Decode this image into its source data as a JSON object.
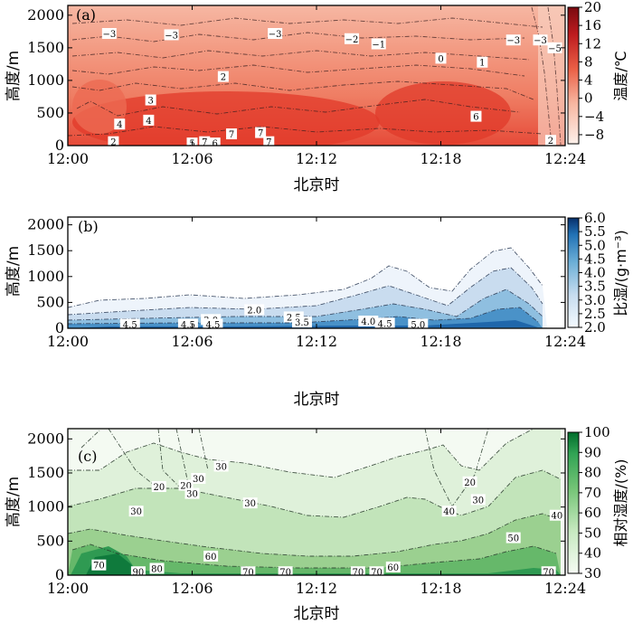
{
  "chart_data": [
    {
      "panel_label": "(a)",
      "type": "heatmap",
      "xlabel": "北京时",
      "ylabel": "高度/m",
      "x_ticks": [
        "12:00",
        "12:06",
        "12:12",
        "12:18",
        "12:24"
      ],
      "y_ticks": [
        0,
        500,
        1000,
        1500,
        2000
      ],
      "ylim": [
        0,
        2150
      ],
      "colorbar": {
        "title": "温度/℃",
        "ticks": [
          20,
          16,
          12,
          8,
          4,
          0,
          -4,
          -8
        ],
        "range": [
          -10,
          20
        ],
        "colors": [
          "#fdf0ea",
          "#f7b59f",
          "#ea5f45",
          "#bd1b1f",
          "#7a0a10"
        ]
      },
      "contour_labels": [
        {
          "text": "−3",
          "time_min": 2.0,
          "height_m": 1720
        },
        {
          "text": "−3",
          "time_min": 5.0,
          "height_m": 1700
        },
        {
          "text": "−3",
          "time_min": 10.0,
          "height_m": 1720
        },
        {
          "text": "−2",
          "time_min": 13.7,
          "height_m": 1640
        },
        {
          "text": "−1",
          "time_min": 15.0,
          "height_m": 1560
        },
        {
          "text": "−3",
          "time_min": 21.5,
          "height_m": 1620
        },
        {
          "text": "−3",
          "time_min": 22.8,
          "height_m": 1620
        },
        {
          "text": "−5",
          "time_min": 23.5,
          "height_m": 1500
        },
        {
          "text": "0",
          "time_min": 18.0,
          "height_m": 1340
        },
        {
          "text": "1",
          "time_min": 20.0,
          "height_m": 1280
        },
        {
          "text": "2",
          "time_min": 7.5,
          "height_m": 1060
        },
        {
          "text": "3",
          "time_min": 4.0,
          "height_m": 700
        },
        {
          "text": "4",
          "time_min": 2.5,
          "height_m": 330
        },
        {
          "text": "4",
          "time_min": 3.9,
          "height_m": 390
        },
        {
          "text": "2",
          "time_min": 2.2,
          "height_m": 60
        },
        {
          "text": "5",
          "time_min": 6.0,
          "height_m": 40
        },
        {
          "text": "7",
          "time_min": 6.6,
          "height_m": 60
        },
        {
          "text": "6",
          "time_min": 7.1,
          "height_m": 40
        },
        {
          "text": "7",
          "time_min": 7.9,
          "height_m": 180
        },
        {
          "text": "7",
          "time_min": 9.3,
          "height_m": 200
        },
        {
          "text": "7",
          "time_min": 9.7,
          "height_m": 60
        },
        {
          "text": "6",
          "time_min": 19.7,
          "height_m": 450
        },
        {
          "text": "2",
          "time_min": 23.3,
          "height_m": 80
        }
      ]
    },
    {
      "panel_label": "(b)",
      "type": "heatmap",
      "xlabel": "北京时",
      "ylabel": "高度/m",
      "x_ticks": [
        "12:00",
        "12:06",
        "12:12",
        "12:18",
        "12:24"
      ],
      "y_ticks": [
        0,
        500,
        1000,
        1500,
        2000
      ],
      "ylim": [
        0,
        2150
      ],
      "colorbar": {
        "title": "比湿/(g·m⁻³)",
        "ticks": [
          "6.0",
          "5.5",
          "5.0",
          "4.5",
          "4.0",
          "3.5",
          "3.0",
          "2.5",
          "2.0"
        ],
        "range": [
          2.0,
          6.0
        ],
        "colors": [
          "#f4f9fe",
          "#c6dcef",
          "#6baed6",
          "#2171b5",
          "#08306b"
        ]
      },
      "contour_labels": [
        {
          "text": "4.5",
          "time_min": 3.0,
          "height_m": 80
        },
        {
          "text": "4.5",
          "time_min": 5.8,
          "height_m": 80
        },
        {
          "text": "3.0",
          "time_min": 6.9,
          "height_m": 170
        },
        {
          "text": "4.5",
          "time_min": 7.0,
          "height_m": 80
        },
        {
          "text": "2.0",
          "time_min": 9.0,
          "height_m": 360
        },
        {
          "text": "2.5",
          "time_min": 10.9,
          "height_m": 220
        },
        {
          "text": "3.5",
          "time_min": 11.3,
          "height_m": 120
        },
        {
          "text": "4.0",
          "time_min": 14.5,
          "height_m": 140
        },
        {
          "text": "4.5",
          "time_min": 15.3,
          "height_m": 100
        },
        {
          "text": "5.0",
          "time_min": 16.9,
          "height_m": 80
        }
      ]
    },
    {
      "panel_label": "(c)",
      "type": "heatmap",
      "xlabel": "北京时",
      "ylabel": "高度/m",
      "x_ticks": [
        "12:00",
        "12:06",
        "12:12",
        "12:18",
        "12:24"
      ],
      "y_ticks": [
        0,
        500,
        1000,
        1500,
        2000
      ],
      "ylim": [
        0,
        2150
      ],
      "colorbar": {
        "title": "相对湿度/(%)",
        "ticks": [
          100,
          90,
          80,
          70,
          60,
          50,
          40,
          30
        ],
        "range": [
          30,
          100
        ],
        "colors": [
          "#f5fbf3",
          "#c7e9c0",
          "#74c476",
          "#31a354",
          "#006d2c"
        ]
      },
      "contour_labels": [
        {
          "text": "20",
          "time_min": 4.4,
          "height_m": 1300
        },
        {
          "text": "20",
          "time_min": 5.7,
          "height_m": 1320
        },
        {
          "text": "30",
          "time_min": 6.3,
          "height_m": 1420
        },
        {
          "text": "30",
          "time_min": 7.4,
          "height_m": 1600
        },
        {
          "text": "30",
          "time_min": 6.0,
          "height_m": 1200
        },
        {
          "text": "30",
          "time_min": 3.3,
          "height_m": 940
        },
        {
          "text": "30",
          "time_min": 8.8,
          "height_m": 1060
        },
        {
          "text": "20",
          "time_min": 19.4,
          "height_m": 1370
        },
        {
          "text": "30",
          "time_min": 19.8,
          "height_m": 1110
        },
        {
          "text": "40",
          "time_min": 18.4,
          "height_m": 940
        },
        {
          "text": "40",
          "time_min": 23.6,
          "height_m": 880
        },
        {
          "text": "50",
          "time_min": 21.5,
          "height_m": 550
        },
        {
          "text": "60",
          "time_min": 6.9,
          "height_m": 280
        },
        {
          "text": "60",
          "time_min": 15.7,
          "height_m": 120
        },
        {
          "text": "70",
          "time_min": 1.5,
          "height_m": 150
        },
        {
          "text": "90",
          "time_min": 3.4,
          "height_m": 50
        },
        {
          "text": "80",
          "time_min": 4.3,
          "height_m": 100
        },
        {
          "text": "70",
          "time_min": 8.7,
          "height_m": 50
        },
        {
          "text": "70",
          "time_min": 10.5,
          "height_m": 50
        },
        {
          "text": "70",
          "time_min": 14.0,
          "height_m": 50
        },
        {
          "text": "70",
          "time_min": 14.9,
          "height_m": 50
        },
        {
          "text": "70",
          "time_min": 23.2,
          "height_m": 50
        }
      ]
    }
  ]
}
